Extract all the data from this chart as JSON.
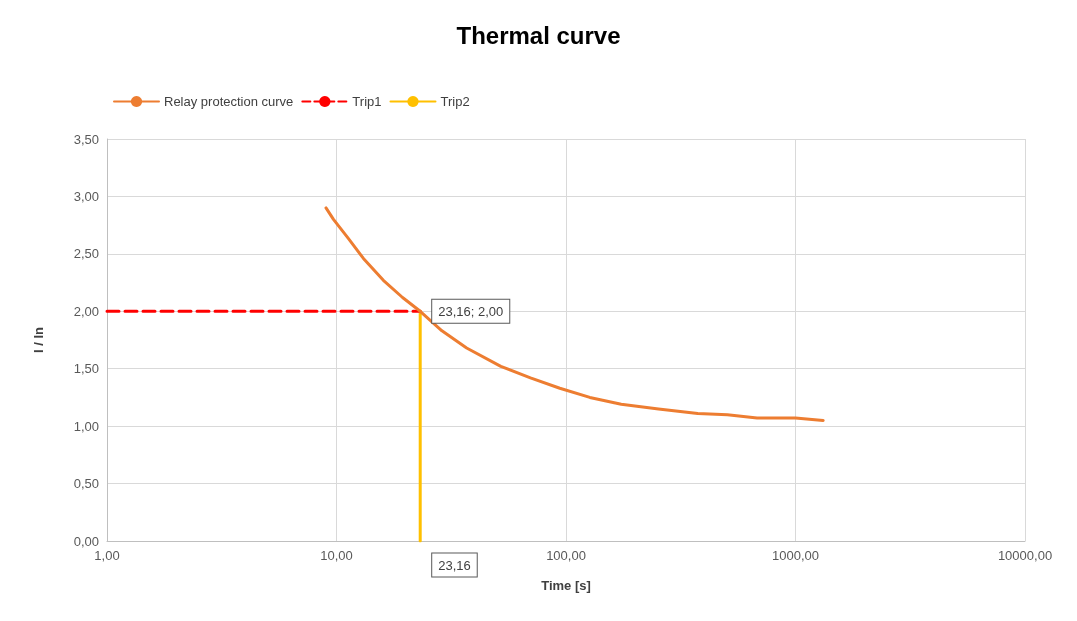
{
  "chart_data": {
    "type": "line",
    "title": "Thermal curve",
    "xlabel": "Time [s]",
    "ylabel": "I / In",
    "log": "x",
    "grid": true,
    "legend": "top left",
    "marker": "none",
    "xlim": [
      1,
      10000
    ],
    "xticks": [
      {
        "value": 1,
        "label": "1,00"
      },
      {
        "value": 10,
        "label": "10,00"
      },
      {
        "value": 100,
        "label": "100,00"
      },
      {
        "value": 1000,
        "label": "1000,00"
      },
      {
        "value": 10000,
        "label": "10000,00"
      }
    ],
    "ylim": [
      0,
      3.5
    ],
    "yticks": [
      {
        "value": 0,
        "label": "0,00"
      },
      {
        "value": 0.5,
        "label": "0,50"
      },
      {
        "value": 1,
        "label": "1,00"
      },
      {
        "value": 1.5,
        "label": "1,50"
      },
      {
        "value": 2,
        "label": "2,00"
      },
      {
        "value": 2.5,
        "label": "2,50"
      },
      {
        "value": 3,
        "label": "3,00"
      },
      {
        "value": 3.5,
        "label": "3,50"
      }
    ],
    "series": [
      {
        "name": "Relay protection curve",
        "color": "#ed7d31",
        "line_style": "solid",
        "x": [
          9.0,
          9.7,
          11.3,
          13.1,
          16.0,
          19.4,
          23.16,
          28.8,
          36.9,
          52,
          70,
          94,
          127,
          174,
          253,
          375,
          505,
          680,
          1000,
          1320
        ],
        "values": [
          2.9,
          2.8,
          2.63,
          2.46,
          2.27,
          2.12,
          2.0,
          1.83,
          1.68,
          1.52,
          1.42,
          1.33,
          1.25,
          1.19,
          1.15,
          1.11,
          1.1,
          1.07,
          1.07,
          1.05
        ]
      },
      {
        "name": "Trip1",
        "color": "#ff0000",
        "line_style": "dashed",
        "x": [
          1,
          23.16
        ],
        "values": [
          2,
          2
        ]
      },
      {
        "name": "Trip2",
        "color": "#ffc000",
        "line_style": "solid",
        "x": [
          23.16,
          23.16
        ],
        "values": [
          0,
          2
        ]
      }
    ],
    "annotations": [
      {
        "text": "23,16; 2,00",
        "x": 23.16,
        "y": 2
      },
      {
        "text": "23,16",
        "x": 23.16,
        "y": 0
      }
    ]
  }
}
